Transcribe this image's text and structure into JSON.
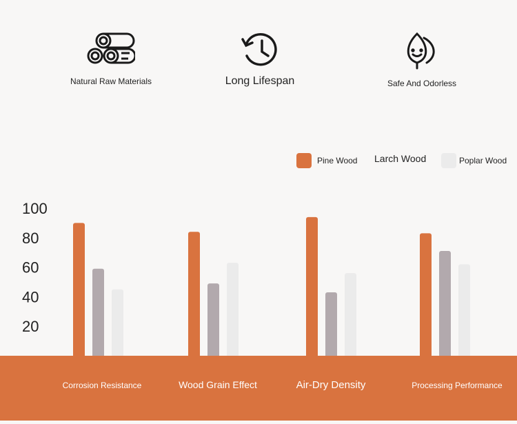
{
  "features": [
    {
      "icon": "logs-icon",
      "label": "Natural Raw Materials"
    },
    {
      "icon": "clock-history-icon",
      "label": "Long Lifespan"
    },
    {
      "icon": "leaf-smile-icon",
      "label": "Safe And Odorless"
    }
  ],
  "colors": {
    "pine": "#d9733f",
    "larch": "#b2a9ad",
    "poplar": "#ebebeb",
    "base": "#d9733f"
  },
  "chart_data": {
    "type": "bar",
    "categories": [
      "Corrosion Resistance",
      "Wood Grain Effect",
      "Air-Dry Density",
      "Processing Performance"
    ],
    "series": [
      {
        "name": "Pine Wood",
        "values": [
          90,
          84,
          94,
          83
        ]
      },
      {
        "name": "Larch Wood",
        "values": [
          59,
          49,
          43,
          71
        ]
      },
      {
        "name": "Poplar Wood",
        "values": [
          45,
          63,
          56,
          62
        ]
      }
    ],
    "yticks": [
      20,
      40,
      60,
      80,
      100
    ],
    "ylim": [
      0,
      100
    ],
    "legend_position": "top-right",
    "grid": false
  }
}
